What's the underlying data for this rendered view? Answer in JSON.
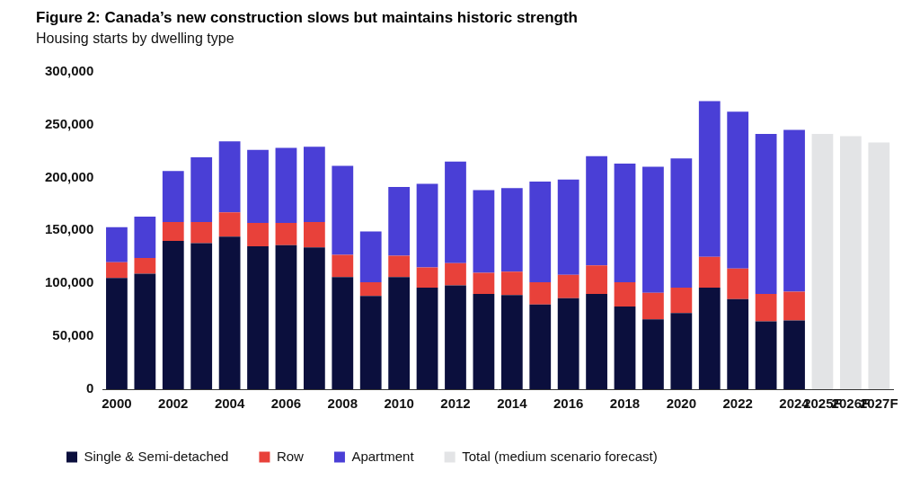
{
  "chart_data": {
    "type": "bar",
    "title": "Figure 2: Canada’s new construction slows but maintains historic strength",
    "subtitle": "Housing starts by dwelling type",
    "categories": [
      "2000",
      null,
      "2002",
      null,
      "2004",
      null,
      "2006",
      null,
      "2008",
      null,
      "2010",
      null,
      "2012",
      null,
      "2014",
      null,
      "2016",
      null,
      "2018",
      null,
      "2020",
      null,
      "2022",
      null,
      "2024",
      "2025F",
      "2026F",
      "2027F"
    ],
    "series": [
      {
        "name": "Single & Semi-detached",
        "color": "#0b0f3d",
        "values": [
          105000,
          109000,
          140000,
          138000,
          144000,
          135000,
          136000,
          134000,
          106000,
          88000,
          106000,
          96000,
          98000,
          90000,
          89000,
          80000,
          86000,
          90000,
          78000,
          66000,
          72000,
          96000,
          85000,
          64000,
          65000,
          null,
          null,
          null
        ]
      },
      {
        "name": "Row",
        "color": "#e8413a",
        "values": [
          15000,
          15000,
          18000,
          20000,
          23000,
          22000,
          21000,
          24000,
          21000,
          13000,
          20000,
          19000,
          21000,
          20000,
          22000,
          21000,
          22000,
          27000,
          23000,
          25000,
          24000,
          29000,
          29000,
          26000,
          27000,
          null,
          null,
          null
        ]
      },
      {
        "name": "Apartment",
        "color": "#4a3fd6",
        "values": [
          33000,
          39000,
          48000,
          61000,
          67000,
          69000,
          71000,
          71000,
          84000,
          48000,
          65000,
          79000,
          96000,
          78000,
          79000,
          95000,
          90000,
          103000,
          112000,
          119000,
          122000,
          147000,
          148000,
          151000,
          153000,
          null,
          null,
          null
        ]
      },
      {
        "name": "Total (medium scenario forecast)",
        "color": "#e3e4e6",
        "values": [
          null,
          null,
          null,
          null,
          null,
          null,
          null,
          null,
          null,
          null,
          null,
          null,
          null,
          null,
          null,
          null,
          null,
          null,
          null,
          null,
          null,
          null,
          null,
          null,
          null,
          241000,
          239000,
          233000
        ]
      }
    ],
    "ylim": [
      0,
      300000
    ],
    "yticks": [
      0,
      {
        "value": 50000,
        "label": "50,000"
      },
      {
        "value": 100000,
        "label": "100,000"
      },
      {
        "value": 150000,
        "label": "150,000"
      },
      {
        "value": 200000,
        "label": "200,000"
      },
      {
        "value": 250000,
        "label": "250,000"
      },
      {
        "value": 300000,
        "label": "300,000"
      }
    ],
    "stacked": true,
    "grid": false,
    "legend": "bottom"
  }
}
